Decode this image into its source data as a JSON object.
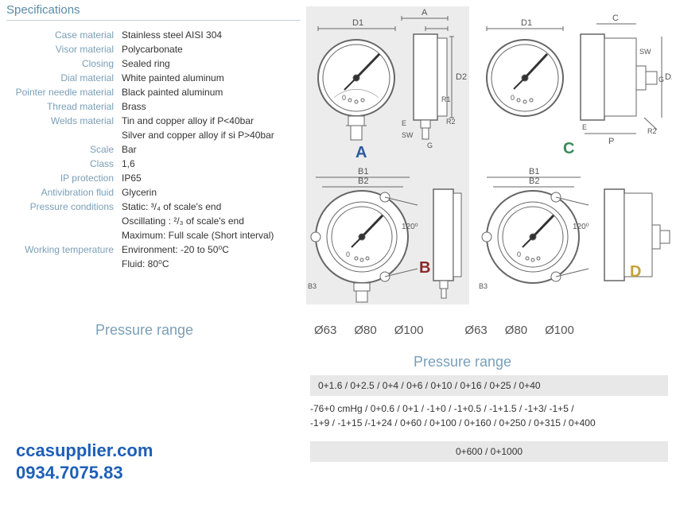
{
  "specs": {
    "title": "Specifications",
    "rows": [
      {
        "label": "Case material",
        "value": "Stainless steel AISI 304"
      },
      {
        "label": "Visor material",
        "value": "Polycarbonate"
      },
      {
        "label": "Closing",
        "value": "Sealed ring"
      },
      {
        "label": "Dial material",
        "value": "White painted aluminum"
      },
      {
        "label": "Pointer needle material",
        "value": "Black painted aluminum"
      },
      {
        "label": "Thread material",
        "value": "Brass"
      },
      {
        "label": "Welds material",
        "value": "Tin and copper alloy if P<40bar"
      },
      {
        "label": "",
        "value": "Silver and copper alloy if si P>40bar"
      },
      {
        "label": "Scale",
        "value": "Bar"
      },
      {
        "label": "Class",
        "value": "1,6"
      },
      {
        "label": "IP protection",
        "value": "IP65"
      },
      {
        "label": "Antivibration fluid",
        "value": "Glycerin"
      },
      {
        "label": "Pressure conditions",
        "value": "Static: ³/₄ of scale's end"
      },
      {
        "label": "",
        "value": "Oscillating : ²/₃ of scale's end"
      },
      {
        "label": "",
        "value": "Maximum: Full scale (Short interval)"
      },
      {
        "label": "Working temperature",
        "value": "Environment: -20 to 50⁰C"
      },
      {
        "label": "",
        "value": "Fluid: 80⁰C"
      }
    ]
  },
  "diagrams": {
    "dim_labels": {
      "D1": "D1",
      "D2": "D2",
      "A": "A",
      "C": "C",
      "E": "E",
      "G": "G",
      "R1": "R1",
      "R2": "R2",
      "SW": "SW",
      "B1": "B1",
      "B2": "B2",
      "B3": "B3",
      "P": "P",
      "angle": "120⁰"
    },
    "variants": {
      "A": "A",
      "B": "B",
      "C": "C",
      "D": "D"
    }
  },
  "pressure_row_label": "Pressure range",
  "diameters": [
    "Ø63",
    "Ø80",
    "Ø100",
    "Ø63",
    "Ø80",
    "Ø100"
  ],
  "pressure_range_title": "Pressure range",
  "pr_line1": "0+1.6 / 0+2.5 / 0+4 / 0+6 / 0+10 / 0+16 / 0+25 / 0+40",
  "pr_line2a": "-76+0 cmHg / 0+0.6 / 0+1 / -1+0 / -1+0.5 / -1+1.5 / -1+3/ -1+5 /",
  "pr_line2b": "-1+9 / -1+15 /-1+24 / 0+60 / 0+100 / 0+160 / 0+250 / 0+315 / 0+400",
  "pr_line3": "0+600 / 0+1000",
  "contact": {
    "site": "ccasupplier.com",
    "phone": "0934.7075.83"
  },
  "colors": {
    "label": "#7a9fb8",
    "text": "#333",
    "line": "#666",
    "a": "#2a5a9e",
    "b": "#8a2a2a",
    "c": "#3a8a5a",
    "d": "#c4a23a",
    "contact": "#1e5fb8"
  }
}
